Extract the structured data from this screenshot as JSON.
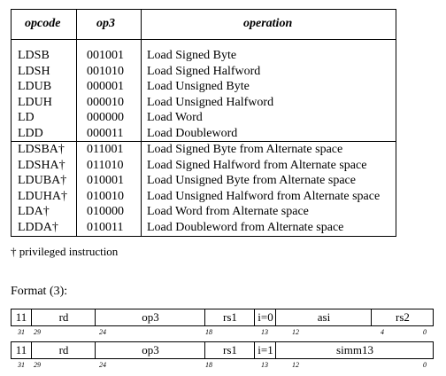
{
  "table": {
    "headers": {
      "opcode": "opcode",
      "op3": "op3",
      "operation": "operation"
    },
    "groups": [
      [
        {
          "opcode": "LDSB",
          "op3": "001001",
          "operation": "Load Signed Byte"
        },
        {
          "opcode": "LDSH",
          "op3": "001010",
          "operation": "Load Signed Halfword"
        },
        {
          "opcode": "LDUB",
          "op3": "000001",
          "operation": "Load Unsigned Byte"
        },
        {
          "opcode": "LDUH",
          "op3": "000010",
          "operation": "Load Unsigned Halfword"
        },
        {
          "opcode": "LD",
          "op3": "000000",
          "operation": "Load Word"
        },
        {
          "opcode": "LDD",
          "op3": "000011",
          "operation": "Load Doubleword"
        }
      ],
      [
        {
          "opcode": "LDSBA†",
          "op3": "011001",
          "operation": "Load Signed Byte from Alternate space"
        },
        {
          "opcode": "LDSHA†",
          "op3": "011010",
          "operation": "Load Signed Halfword from Alternate space"
        },
        {
          "opcode": "LDUBA†",
          "op3": "010001",
          "operation": "Load Unsigned Byte from Alternate space"
        },
        {
          "opcode": "LDUHA†",
          "op3": "010010",
          "operation": "Load Unsigned Halfword from Alternate space"
        },
        {
          "opcode": "LDA†",
          "op3": "010000",
          "operation": "Load Word from Alternate space"
        },
        {
          "opcode": "LDDA†",
          "op3": "010011",
          "operation": "Load Doubleword from Alternate space"
        }
      ]
    ]
  },
  "footnote": "† privileged instruction",
  "format": {
    "title": "Format (3):",
    "diagrams": [
      {
        "fields": [
          "11",
          "rd",
          "op3",
          "rs1",
          "i=0",
          "asi",
          "rs2"
        ],
        "bits": [
          "31",
          "29",
          "24",
          "18",
          "13",
          "12",
          "4",
          "0"
        ]
      },
      {
        "fields": [
          "11",
          "rd",
          "op3",
          "rs1",
          "i=1",
          "simm13"
        ],
        "bits": [
          "31",
          "29",
          "24",
          "18",
          "13",
          "12",
          "0"
        ]
      }
    ]
  }
}
